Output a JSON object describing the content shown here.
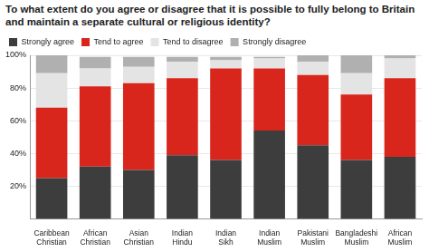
{
  "chart_data": {
    "type": "bar",
    "title": "To what extent do you agree or disagree that it is possible to fully belong to Britain and maintain a separate cultural or religious identity?",
    "categories": [
      "Caribbean Christian",
      "African Christian",
      "Asian Christian",
      "Indian Hindu",
      "Indian Sikh",
      "Indian Muslim",
      "Pakistani Muslim",
      "Bangladeshi Muslim",
      "African Muslim"
    ],
    "series": [
      {
        "name": "Strongly agree",
        "color": "#3d3d3d",
        "values": [
          25,
          32,
          30,
          39,
          36,
          54,
          45,
          36,
          38
        ]
      },
      {
        "name": "Tend to agree",
        "color": "#d9261c",
        "values": [
          43,
          49,
          53,
          47,
          56,
          38,
          43,
          40,
          48
        ]
      },
      {
        "name": "Tend to disagree",
        "color": "#e4e4e4",
        "values": [
          21,
          11,
          10,
          10,
          5,
          6,
          8,
          13,
          12
        ]
      },
      {
        "name": "Strongly disagree",
        "color": "#b0b0b0",
        "values": [
          11,
          7,
          6,
          3,
          2,
          1,
          4,
          11,
          2
        ]
      }
    ],
    "stacked": true,
    "ylim": [
      0,
      100
    ],
    "yticks": [
      {
        "value": 20,
        "label": "20%"
      },
      {
        "value": 40,
        "label": "40%"
      },
      {
        "value": 60,
        "label": "60%"
      },
      {
        "value": 80,
        "label": "80%"
      },
      {
        "value": 100,
        "label": "100%"
      }
    ],
    "grid": true,
    "legend": "top"
  }
}
